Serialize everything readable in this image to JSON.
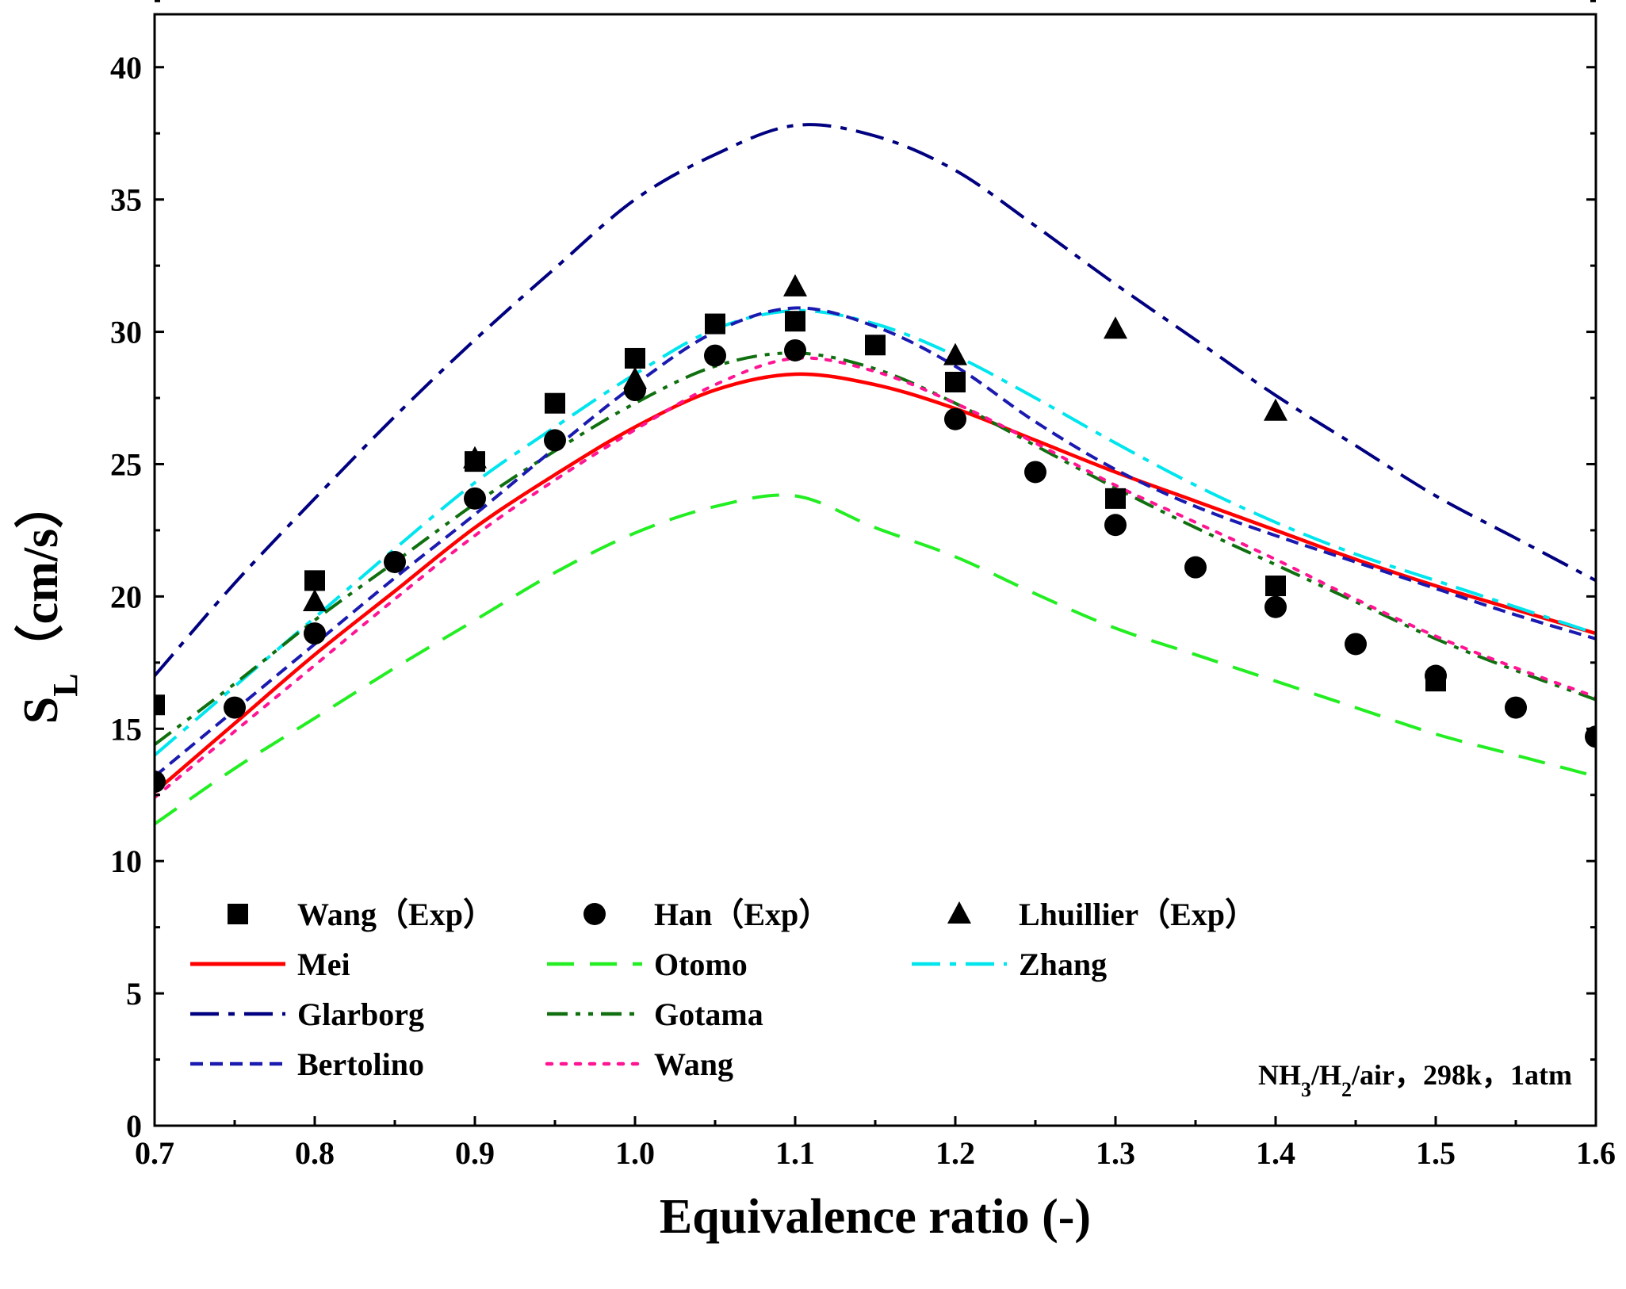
{
  "chart_data": {
    "type": "line",
    "title": "",
    "xlabel": "Equivalence ratio (-)",
    "ylabel_main": "S",
    "ylabel_sub": "L",
    "ylabel_unit": "（cm/s）",
    "xlim": [
      0.7,
      1.6
    ],
    "ylim": [
      0,
      42
    ],
    "xticks": [
      0.7,
      0.8,
      0.9,
      1.0,
      1.1,
      1.2,
      1.3,
      1.4,
      1.5,
      1.6
    ],
    "xtick_labels": [
      "0.7",
      "0.8",
      "0.9",
      "1.0",
      "1.1",
      "1.2",
      "1.3",
      "1.4",
      "1.5",
      "1.6"
    ],
    "yticks": [
      0,
      5,
      10,
      15,
      20,
      25,
      30,
      35,
      40
    ],
    "ytick_labels": [
      "0",
      "5",
      "10",
      "15",
      "20",
      "25",
      "30",
      "35",
      "40"
    ],
    "grid": false,
    "legend_position": "bottom-left",
    "annotation": {
      "parts": [
        {
          "text": "NH",
          "sub": false
        },
        {
          "text": "3",
          "sub": true
        },
        {
          "text": "/H",
          "sub": false
        },
        {
          "text": "2",
          "sub": true
        },
        {
          "text": "/air，298k，1atm",
          "sub": false
        }
      ]
    },
    "experiments": [
      {
        "name": "Wang（Exp）",
        "marker": "square",
        "x": [
          0.7,
          0.8,
          0.9,
          0.95,
          1.0,
          1.05,
          1.1,
          1.15,
          1.2,
          1.3,
          1.4,
          1.5
        ],
        "y": [
          15.9,
          20.6,
          25.1,
          27.3,
          29.0,
          30.3,
          30.4,
          29.5,
          28.1,
          23.7,
          20.4,
          16.8
        ]
      },
      {
        "name": "Han（Exp）",
        "marker": "circle",
        "x": [
          0.7,
          0.75,
          0.8,
          0.85,
          0.9,
          0.95,
          1.0,
          1.05,
          1.1,
          1.2,
          1.25,
          1.3,
          1.35,
          1.4,
          1.45,
          1.5,
          1.55,
          1.6
        ],
        "y": [
          13.0,
          15.8,
          18.6,
          21.3,
          23.7,
          25.9,
          27.8,
          29.1,
          29.3,
          26.7,
          24.7,
          22.7,
          21.1,
          19.6,
          18.2,
          17.0,
          15.8,
          14.7
        ]
      },
      {
        "name": "Lhuillier（Exp）",
        "marker": "triangle",
        "x": [
          0.8,
          0.9,
          1.0,
          1.1,
          1.2,
          1.3,
          1.4
        ],
        "y": [
          19.8,
          25.2,
          28.2,
          31.7,
          29.1,
          30.1,
          27.0
        ]
      }
    ],
    "series": [
      {
        "name": "Mei",
        "color": "#ff0000",
        "dash": "solid",
        "x": [
          0.7,
          0.75,
          0.8,
          0.85,
          0.9,
          0.95,
          1.0,
          1.05,
          1.1,
          1.15,
          1.2,
          1.25,
          1.3,
          1.35,
          1.4,
          1.45,
          1.5,
          1.55,
          1.6
        ],
        "y": [
          12.6,
          15.2,
          17.8,
          20.2,
          22.6,
          24.6,
          26.4,
          27.8,
          28.4,
          28.0,
          27.1,
          25.9,
          24.7,
          23.6,
          22.5,
          21.4,
          20.4,
          19.5,
          18.6
        ]
      },
      {
        "name": "Otomo",
        "color": "#22ee22",
        "dash": "dash",
        "x": [
          0.7,
          0.75,
          0.8,
          0.85,
          0.9,
          0.95,
          1.0,
          1.05,
          1.1,
          1.15,
          1.2,
          1.25,
          1.3,
          1.35,
          1.4,
          1.45,
          1.5,
          1.55,
          1.6
        ],
        "y": [
          11.4,
          13.5,
          15.4,
          17.3,
          19.1,
          20.9,
          22.4,
          23.4,
          23.8,
          22.6,
          21.5,
          20.1,
          18.8,
          17.8,
          16.8,
          15.8,
          14.8,
          14.0,
          13.2
        ]
      },
      {
        "name": "Zhang",
        "color": "#00e5ee",
        "dash": "dashdot",
        "x": [
          0.7,
          0.75,
          0.8,
          0.85,
          0.9,
          0.95,
          1.0,
          1.05,
          1.1,
          1.15,
          1.2,
          1.25,
          1.3,
          1.35,
          1.4,
          1.45,
          1.5,
          1.55,
          1.6
        ],
        "y": [
          14.0,
          16.6,
          19.2,
          21.8,
          24.3,
          26.4,
          28.4,
          30.1,
          30.8,
          30.3,
          29.1,
          27.5,
          25.8,
          24.2,
          22.8,
          21.6,
          20.6,
          19.6,
          18.6
        ]
      },
      {
        "name": "Glarborg",
        "color": "#000080",
        "dash": "dashdot",
        "x": [
          0.7,
          0.75,
          0.8,
          0.85,
          0.9,
          0.95,
          1.0,
          1.05,
          1.1,
          1.15,
          1.2,
          1.25,
          1.3,
          1.35,
          1.4,
          1.45,
          1.5,
          1.55,
          1.6
        ],
        "y": [
          17.0,
          20.5,
          23.7,
          26.8,
          29.7,
          32.4,
          35.0,
          36.7,
          37.8,
          37.4,
          36.1,
          34.0,
          31.8,
          29.7,
          27.6,
          25.7,
          23.8,
          22.2,
          20.6
        ]
      },
      {
        "name": "Gotama",
        "color": "#107010",
        "dash": "dashdotdot",
        "x": [
          0.7,
          0.75,
          0.8,
          0.85,
          0.9,
          0.95,
          1.0,
          1.05,
          1.1,
          1.15,
          1.2,
          1.25,
          1.3,
          1.35,
          1.4,
          1.45,
          1.5,
          1.55,
          1.6
        ],
        "y": [
          14.4,
          16.7,
          19.1,
          21.3,
          23.5,
          25.5,
          27.3,
          28.7,
          29.2,
          28.6,
          27.3,
          25.7,
          24.1,
          22.6,
          21.2,
          19.8,
          18.4,
          17.2,
          16.1
        ]
      },
      {
        "name": "Bertolino",
        "color": "#1a1ab0",
        "dash": "shortdash",
        "x": [
          0.7,
          0.75,
          0.8,
          0.85,
          0.9,
          0.95,
          1.0,
          1.05,
          1.1,
          1.15,
          1.2,
          1.25,
          1.3,
          1.35,
          1.4,
          1.45,
          1.5,
          1.55,
          1.6
        ],
        "y": [
          13.2,
          15.7,
          18.2,
          20.7,
          23.1,
          25.6,
          28.0,
          30.0,
          30.9,
          30.2,
          28.7,
          26.6,
          24.8,
          23.4,
          22.3,
          21.3,
          20.3,
          19.3,
          18.4
        ]
      },
      {
        "name": "Wang",
        "color": "#ff1493",
        "dash": "dot",
        "x": [
          0.7,
          0.75,
          0.8,
          0.85,
          0.9,
          0.95,
          1.0,
          1.05,
          1.1,
          1.15,
          1.2,
          1.25,
          1.3,
          1.35,
          1.4,
          1.45,
          1.5,
          1.55,
          1.6
        ],
        "y": [
          12.4,
          14.9,
          17.4,
          19.9,
          22.3,
          24.4,
          26.3,
          28.0,
          29.0,
          28.5,
          27.3,
          25.8,
          24.2,
          22.8,
          21.4,
          19.9,
          18.5,
          17.3,
          16.2
        ]
      }
    ],
    "legend_rows": [
      [
        "Wang（Exp）",
        "Han（Exp）",
        "Lhuillier（Exp）"
      ],
      [
        "Mei",
        "Otomo",
        "Zhang"
      ],
      [
        "Glarborg",
        "Gotama",
        ""
      ],
      [
        "Bertolino",
        "Wang",
        ""
      ]
    ]
  }
}
